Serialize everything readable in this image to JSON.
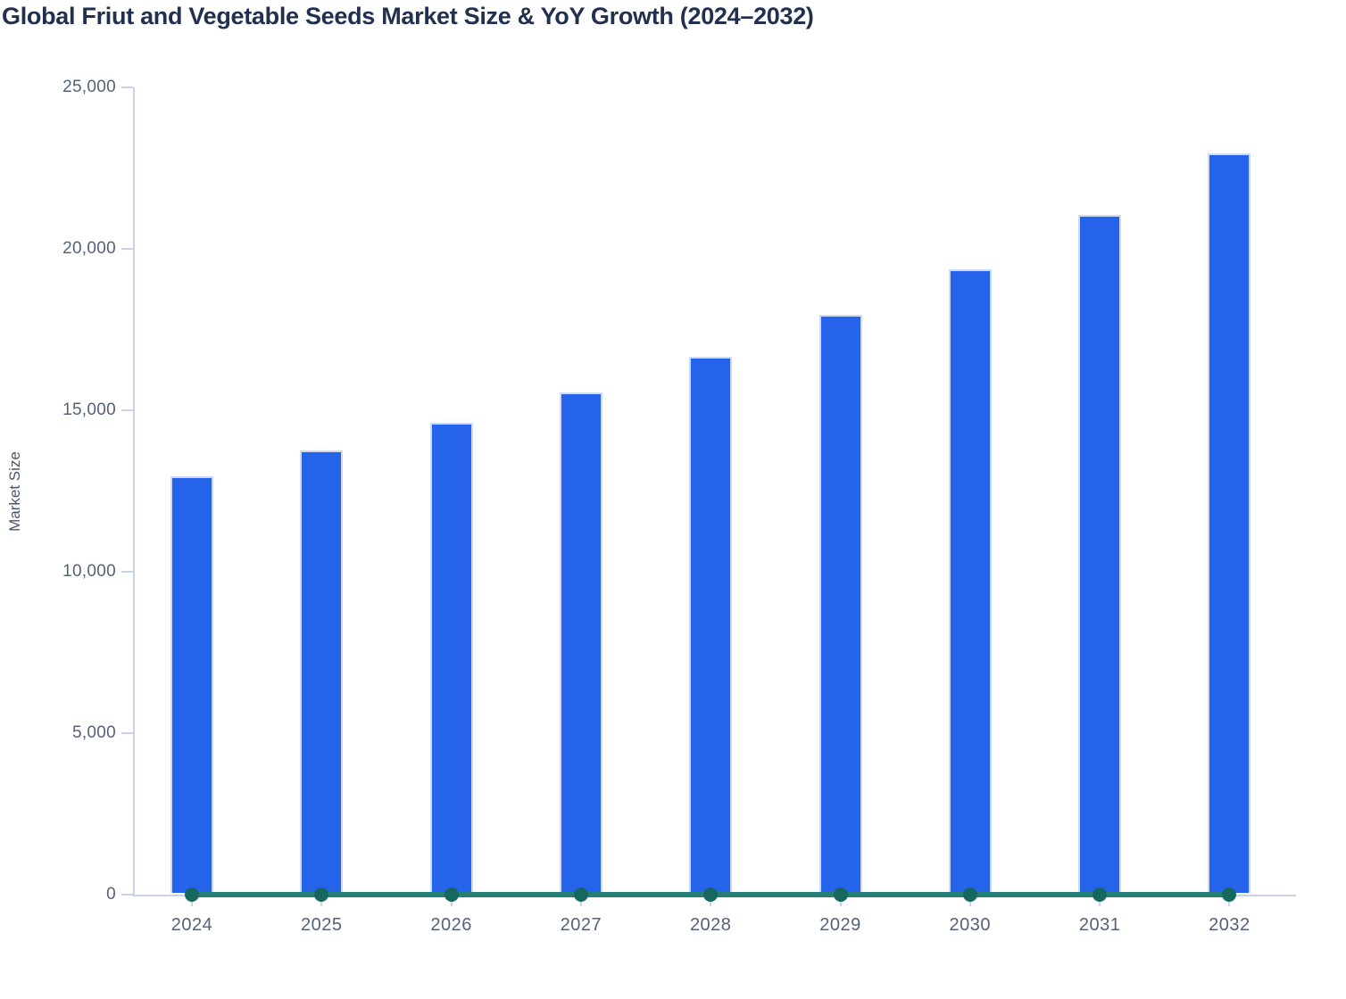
{
  "chart_data": {
    "type": "bar",
    "title": "Global Friut and Vegetable Seeds Market Size & YoY Growth (2024–2032)",
    "xlabel": "",
    "ylabel": "Market Size",
    "categories": [
      "2024",
      "2025",
      "2026",
      "2027",
      "2028",
      "2029",
      "2030",
      "2031",
      "2032"
    ],
    "series": [
      {
        "name": "Market Size",
        "type": "bar",
        "values": [
          12900,
          13700,
          14550,
          15500,
          16600,
          17900,
          19300,
          21000,
          22900
        ]
      },
      {
        "name": "YoY Growth",
        "type": "line",
        "values": [
          0,
          6.2,
          6.2,
          6.5,
          7.1,
          7.8,
          7.8,
          8.8,
          9.0
        ],
        "layout_note": "plotted against the Market Size axis, so the line renders flat along the zero baseline with a marker dot at each year"
      }
    ],
    "ylim": [
      0,
      25000
    ],
    "yticks": [
      {
        "value": 0,
        "label": "0"
      },
      {
        "value": 5000,
        "label": "5,000"
      },
      {
        "value": 10000,
        "label": "10,000"
      },
      {
        "value": 15000,
        "label": "15,000"
      },
      {
        "value": 20000,
        "label": "20,000"
      },
      {
        "value": 25000,
        "label": "25,000"
      }
    ],
    "grid": false,
    "legend_position": "none"
  },
  "colors": {
    "background": "#ffffff",
    "title_text": "#22304f",
    "axis_title_text": "#4a5568",
    "tick_text": "#55617a",
    "axis_line": "#c9d2ea",
    "bar_fill": "#2563eb",
    "bar_border": "#ccd9f8",
    "line": "#237e74",
    "dot": "#16685f"
  }
}
